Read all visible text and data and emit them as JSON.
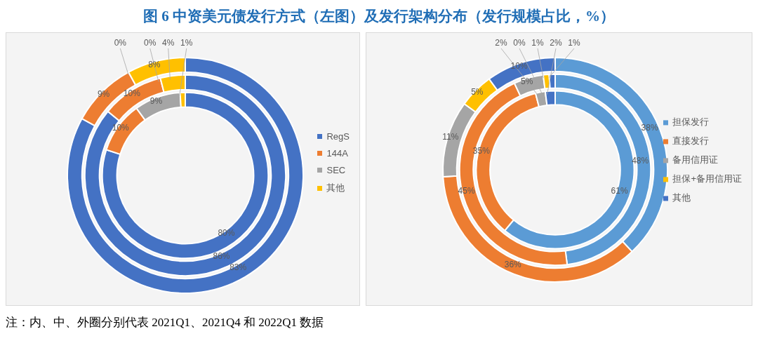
{
  "chart_data": [
    {
      "type": "donut",
      "title": "图 6 中资美元债发行方式（左图）及发行架构分布（发行规模占比，%）",
      "annotations": [
        "注：内、中、外圈分别代表 2021Q1、2021Q4 和 2022Q1 数据"
      ],
      "categories": [
        "RegS",
        "144A",
        "SEC",
        "其他"
      ],
      "colors": [
        "#4472c4",
        "#ed7d31",
        "#a5a5a5",
        "#ffc000"
      ],
      "legend": "right",
      "series": [
        {
          "values": [
            80,
            10,
            9,
            1
          ],
          "value_labels": [
            "80%",
            "10%",
            "9%",
            "1%"
          ]
        },
        {
          "values": [
            86,
            10,
            0,
            4
          ],
          "value_labels": [
            "86%",
            "10%",
            "0%",
            "4%"
          ]
        },
        {
          "values": [
            83,
            9,
            0,
            8
          ],
          "value_labels": [
            "83%",
            "9%",
            "0%",
            "8%"
          ]
        }
      ]
    },
    {
      "type": "donut",
      "categories": [
        "担保发行",
        "直接发行",
        "备用信用证",
        "担保+备用信用证",
        "其他"
      ],
      "colors": [
        "#5b9bd5",
        "#ed7d31",
        "#a5a5a5",
        "#ffc000",
        "#4472c4"
      ],
      "legend": "right",
      "series": [
        {
          "values": [
            61,
            35,
            2,
            0,
            2
          ],
          "value_labels": [
            "61%",
            "35%",
            "2%",
            "0%",
            "2%"
          ]
        },
        {
          "values": [
            48,
            45,
            5,
            1,
            1
          ],
          "value_labels": [
            "48%",
            "45%",
            "5%",
            "1%",
            "1%"
          ]
        },
        {
          "values": [
            38,
            36,
            11,
            5,
            10
          ],
          "value_labels": [
            "38%",
            "36%",
            "11%",
            "5%",
            "10%"
          ]
        }
      ]
    }
  ]
}
